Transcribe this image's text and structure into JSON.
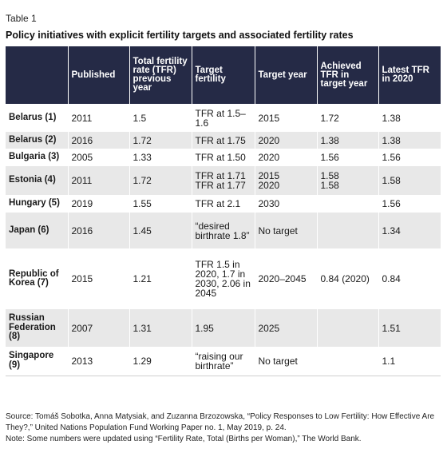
{
  "table_label": "Table 1",
  "table_title": "Policy initiatives with explicit fertility targets and associated fertility rates",
  "headers": [
    "",
    "Published",
    "Total fertility rate (TFR) previous year",
    "Target fertility",
    "Target year",
    "Achieved TFR in target year",
    "Latest TFR in 2020"
  ],
  "rows": [
    [
      "Belarus (1)",
      "2011",
      "1.5",
      "TFR at 1.5–1.6",
      "2015",
      "1.72",
      "1.38"
    ],
    [
      "Belarus (2)",
      "2016",
      "1.72",
      "TFR at 1.75",
      "2020",
      "1.38",
      "1.38"
    ],
    [
      "Bulgaria (3)",
      "2005",
      "1.33",
      "TFR at 1.50",
      "2020",
      "1.56",
      "1.56"
    ],
    [
      "Estonia (4)",
      "2011",
      "1.72",
      "TFR at 1.71\nTFR at 1.77",
      "2015\n2020",
      "1.58\n1.58",
      "1.58"
    ],
    [
      "Hungary (5)",
      "2019",
      "1.55",
      "TFR at 2.1",
      "2030",
      "",
      "1.56"
    ],
    [
      "Japan (6)",
      "2016",
      "1.45",
      "“desired birthrate 1.8”",
      "No target",
      "",
      "1.34"
    ],
    [
      "Republic of Korea (7)",
      "2015",
      "1.21",
      "TFR 1.5 in 2020, 1.7 in 2030, 2.06 in 2045",
      "2020–2045",
      "0.84 (2020)",
      "0.84"
    ],
    [
      "Russian Federation (8)",
      "2007",
      "1.31",
      "1.95",
      "2025",
      "",
      "1.51"
    ],
    [
      "Singapore (9)",
      "2013",
      "1.29",
      "“raising our birthrate”",
      "No target",
      "",
      "1.1"
    ]
  ],
  "source": "Source: Tomáš Sobotka, Anna Matysiak, and Zuzanna Brzozowska, “Policy Responses to Low Fertility: How Effective Are They?,” United Nations Population Fund Working Paper no. 1, May 2019, p. 24.",
  "note": "Note: Some numbers were updated using “Fertility Rate, Total (Births per Woman),” The World Bank.",
  "colors": {
    "header_background": "#252a46",
    "stripe": "#e8e8e8"
  }
}
